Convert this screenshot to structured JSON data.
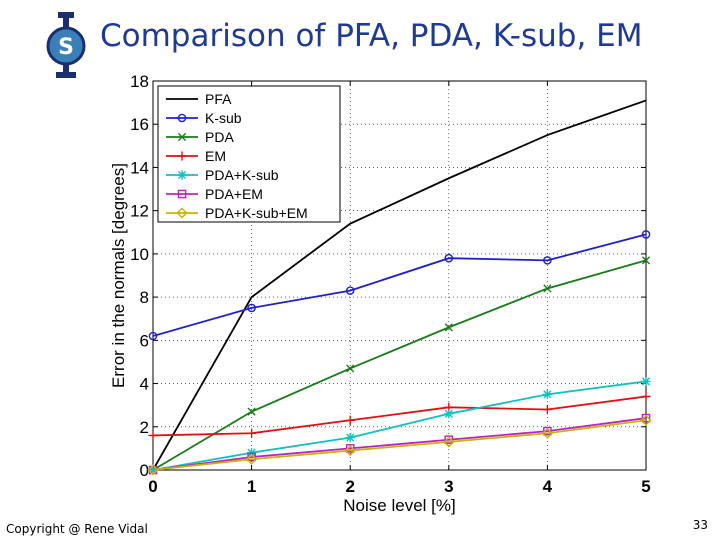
{
  "slide": {
    "title": "Comparison of PFA, PDA, K-sub, EM",
    "copyright": "Copyright @ Rene Vidal",
    "page_number": "33",
    "logo_text": "S"
  },
  "chart_data": {
    "type": "line",
    "title": "",
    "xlabel": "Noise level [%]",
    "ylabel": "Error in the normals [degrees]",
    "x": [
      0,
      1,
      2,
      3,
      4,
      5
    ],
    "xlim": [
      0,
      5
    ],
    "ylim": [
      0,
      18
    ],
    "xticks": [
      "0",
      "1",
      "2",
      "3",
      "4",
      "5"
    ],
    "yticks": [
      "0",
      "2",
      "4",
      "6",
      "8",
      "10",
      "12",
      "14",
      "16",
      "18"
    ],
    "grid": true,
    "legend_position": "top-left",
    "series": [
      {
        "name": "PFA",
        "color": "#000000",
        "marker": "none",
        "values": [
          0.0,
          8.0,
          11.4,
          13.5,
          15.5,
          17.1
        ]
      },
      {
        "name": "K-sub",
        "color": "#1f1fd0",
        "marker": "circle",
        "values": [
          6.2,
          7.5,
          8.3,
          9.8,
          9.7,
          10.9
        ]
      },
      {
        "name": "PDA",
        "color": "#1a7a1a",
        "marker": "x",
        "values": [
          0.0,
          2.7,
          4.7,
          6.6,
          8.4,
          9.7
        ]
      },
      {
        "name": "EM",
        "color": "#e01010",
        "marker": "plus",
        "values": [
          1.6,
          1.7,
          2.3,
          2.9,
          2.8,
          3.4
        ]
      },
      {
        "name": "PDA+K-sub",
        "color": "#10c0c0",
        "marker": "star",
        "values": [
          0.0,
          0.8,
          1.5,
          2.6,
          3.5,
          4.1
        ]
      },
      {
        "name": "PDA+EM",
        "color": "#c020c0",
        "marker": "square",
        "values": [
          0.0,
          0.6,
          1.0,
          1.4,
          1.8,
          2.4
        ]
      },
      {
        "name": "PDA+K-sub+EM",
        "color": "#c8b400",
        "marker": "diamond",
        "values": [
          0.0,
          0.5,
          0.9,
          1.3,
          1.7,
          2.3
        ]
      }
    ]
  }
}
